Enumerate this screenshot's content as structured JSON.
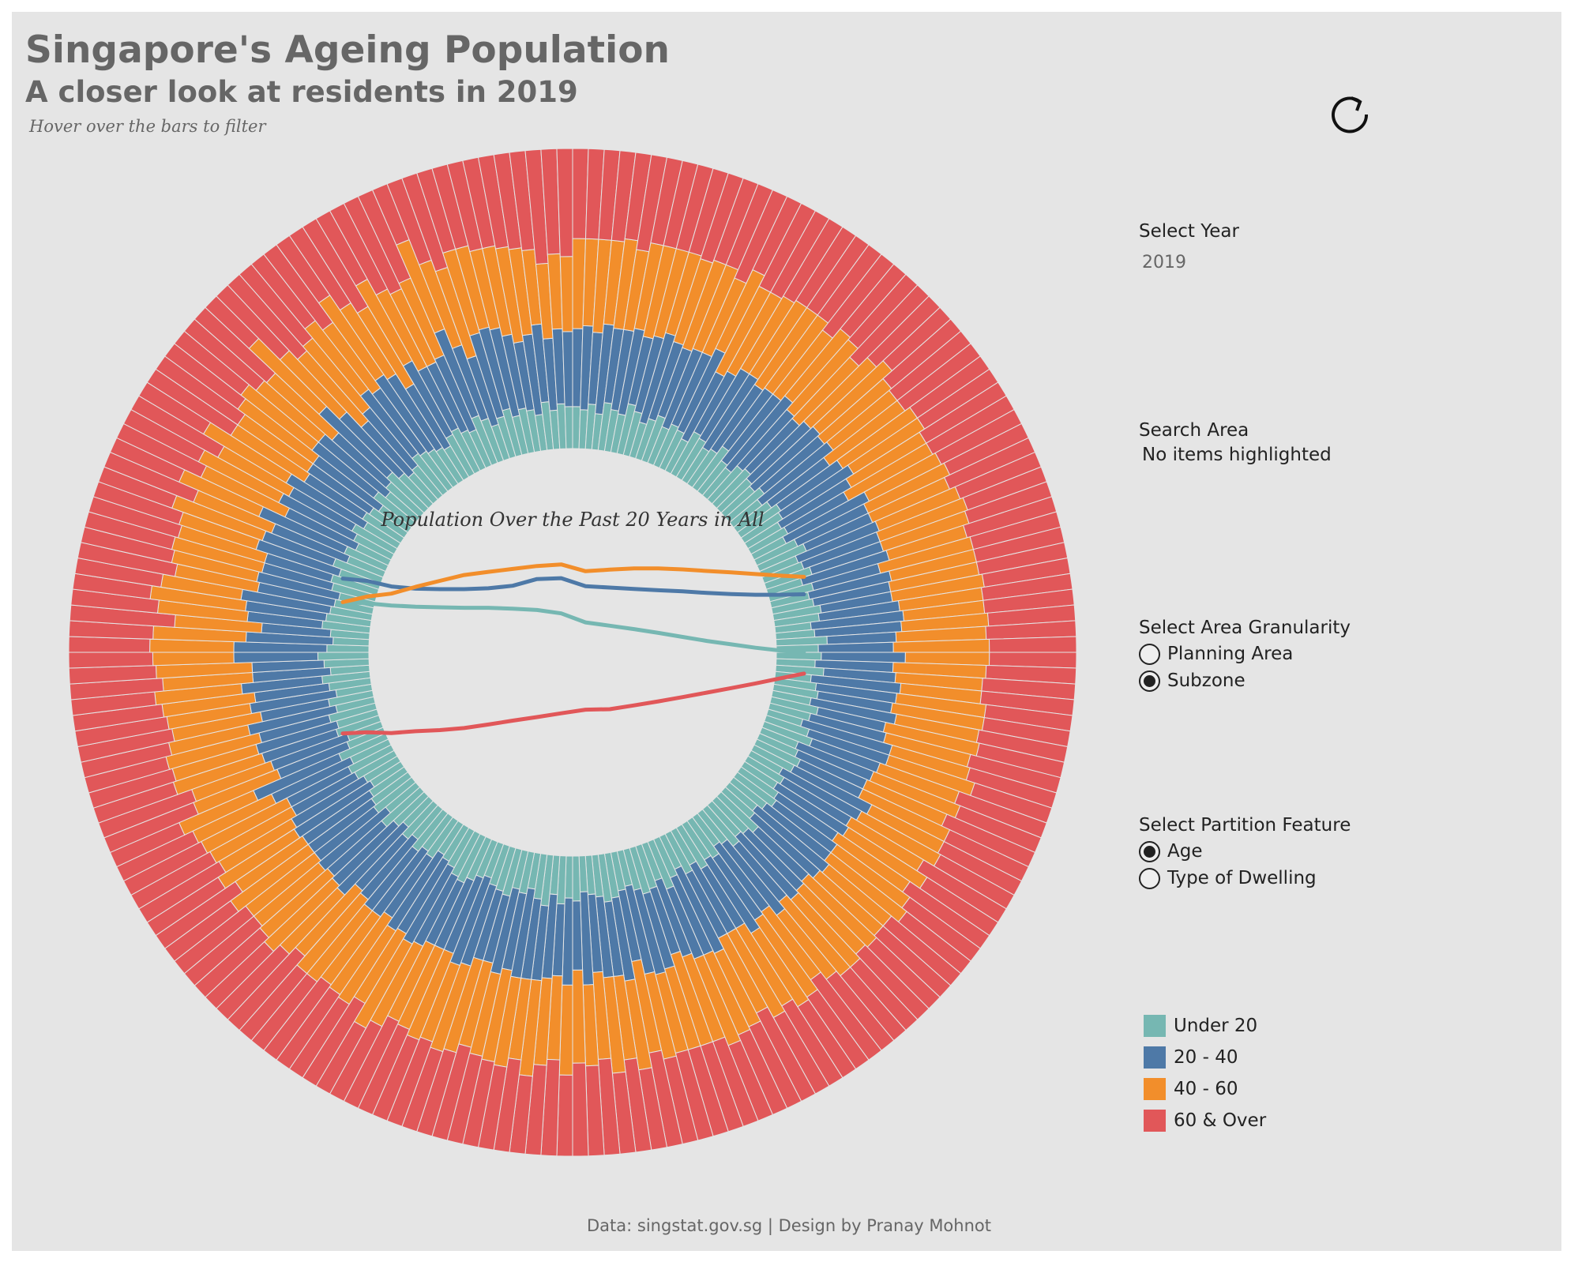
{
  "header": {
    "title": "Singapore's Ageing Population",
    "subtitle": "A closer look at residents in 2019",
    "hint": "Hover over the bars to filter"
  },
  "reset_icon": "reset-arrow-icon",
  "controls": {
    "year_label": "Select Year",
    "year_value": "2019",
    "search_label": "Search Area",
    "search_value": "No items highlighted",
    "granularity_label": "Select Area Granularity",
    "granularity_options": [
      "Planning Area",
      "Subzone"
    ],
    "granularity_selected": "Subzone",
    "partition_label": "Select Partition Feature",
    "partition_options": [
      "Age",
      "Type of Dwelling"
    ],
    "partition_selected": "Age"
  },
  "legend": [
    {
      "label": "Under 20",
      "color": "#76b7b2"
    },
    {
      "label": "20 - 40",
      "color": "#4e79a7"
    },
    {
      "label": "40 - 60",
      "color": "#f28e2b"
    },
    {
      "label": "60 & Over",
      "color": "#e15759"
    }
  ],
  "footer": "Data: singstat.gov.sg | Design by Pranay Mohnot",
  "chart_data": [
    {
      "type": "radial stacked bar",
      "subzone_count": 200,
      "series_names": [
        "Under 20",
        "20 - 40",
        "40 - 60",
        "60 & Over"
      ],
      "colors": [
        "#76b7b2",
        "#4e79a7",
        "#f28e2b",
        "#e15759"
      ],
      "shares_note_values": [
        {
          "name": "Under 20",
          "values": [
            0.14,
            0.13,
            0.15,
            0.12,
            0.16,
            0.14,
            0.13,
            0.17,
            0.15,
            0.12,
            0.14,
            0.16,
            0.13,
            0.15,
            0.14,
            0.12,
            0.16,
            0.15,
            0.13,
            0.14,
            0.17,
            0.13,
            0.12,
            0.15,
            0.16,
            0.14,
            0.13,
            0.15,
            0.12,
            0.14,
            0.16,
            0.15,
            0.13,
            0.14,
            0.12,
            0.15,
            0.17,
            0.13,
            0.14,
            0.16,
            0.12,
            0.15,
            0.13,
            0.14,
            0.16,
            0.15,
            0.12,
            0.13,
            0.17,
            0.14,
            0.15,
            0.13,
            0.16,
            0.12,
            0.14,
            0.15,
            0.13,
            0.16,
            0.14,
            0.12,
            0.15,
            0.17,
            0.13,
            0.14,
            0.16,
            0.15,
            0.12,
            0.14,
            0.13,
            0.15,
            0.16,
            0.14,
            0.12,
            0.13,
            0.17,
            0.15,
            0.14,
            0.16,
            0.13,
            0.12,
            0.15,
            0.14,
            0.16,
            0.13,
            0.15,
            0.12,
            0.14,
            0.17,
            0.13,
            0.15,
            0.16,
            0.14,
            0.12,
            0.13,
            0.15,
            0.16,
            0.14,
            0.13,
            0.12,
            0.15,
            0.14,
            0.16,
            0.13,
            0.17,
            0.15,
            0.12,
            0.14,
            0.13,
            0.16,
            0.15,
            0.14,
            0.12,
            0.13,
            0.15,
            0.17,
            0.16,
            0.14,
            0.13,
            0.12,
            0.15,
            0.14,
            0.16,
            0.13,
            0.15,
            0.12,
            0.14,
            0.17,
            0.13,
            0.16,
            0.15,
            0.14,
            0.12,
            0.13,
            0.15,
            0.16,
            0.14,
            0.17,
            0.13,
            0.12,
            0.15,
            0.14,
            0.16,
            0.13,
            0.15,
            0.12,
            0.14,
            0.16,
            0.13,
            0.15,
            0.17,
            0.14,
            0.12,
            0.13,
            0.16,
            0.15,
            0.14,
            0.13,
            0.12,
            0.15,
            0.16,
            0.14,
            0.17,
            0.13,
            0.15,
            0.12,
            0.14,
            0.16,
            0.13,
            0.15,
            0.14,
            0.12,
            0.16,
            0.13,
            0.15,
            0.17,
            0.14,
            0.12,
            0.13,
            0.16,
            0.15,
            0.14,
            0.13,
            0.12,
            0.15,
            0.16,
            0.14,
            0.13,
            0.17,
            0.15,
            0.12,
            0.14,
            0.16,
            0.13,
            0.15,
            0.14,
            0.12,
            0.16,
            0.13,
            0.15,
            0.14
          ]
        },
        {
          "name": "20 - 40",
          "values": [
            0.26,
            0.28,
            0.24,
            0.3,
            0.25,
            0.27,
            0.29,
            0.23,
            0.26,
            0.31,
            0.27,
            0.24,
            0.28,
            0.26,
            0.3,
            0.25,
            0.23,
            0.27,
            0.29,
            0.26,
            0.24,
            0.28,
            0.31,
            0.25,
            0.23,
            0.27,
            0.29,
            0.26,
            0.3,
            0.24,
            0.25,
            0.28,
            0.27,
            0.23,
            0.31,
            0.26,
            0.24,
            0.29,
            0.27,
            0.25,
            0.3,
            0.23,
            0.28,
            0.26,
            0.24,
            0.27,
            0.31,
            0.29,
            0.23,
            0.25,
            0.28,
            0.26,
            0.24,
            0.3,
            0.27,
            0.25,
            0.29,
            0.23,
            0.26,
            0.31,
            0.28,
            0.24,
            0.27,
            0.25,
            0.23,
            0.29,
            0.3,
            0.26,
            0.28,
            0.24,
            0.25,
            0.27,
            0.31,
            0.29,
            0.23,
            0.26,
            0.28,
            0.24,
            0.3,
            0.27,
            0.25,
            0.29,
            0.23,
            0.26,
            0.24,
            0.31,
            0.28,
            0.25,
            0.27,
            0.23,
            0.26,
            0.29,
            0.3,
            0.24,
            0.28,
            0.25,
            0.27,
            0.26,
            0.31,
            0.23,
            0.29,
            0.24,
            0.28,
            0.25,
            0.27,
            0.3,
            0.26,
            0.29,
            0.23,
            0.24,
            0.28,
            0.31,
            0.27,
            0.25,
            0.23,
            0.26,
            0.29,
            0.28,
            0.3,
            0.24,
            0.27,
            0.25,
            0.26,
            0.23,
            0.31,
            0.28,
            0.24,
            0.29,
            0.25,
            0.26,
            0.27,
            0.3,
            0.28,
            0.24,
            0.23,
            0.29,
            0.31,
            0.25,
            0.27,
            0.26,
            0.28,
            0.24,
            0.3,
            0.23,
            0.29,
            0.25,
            0.27,
            0.26,
            0.24,
            0.28,
            0.31,
            0.29,
            0.23,
            0.25,
            0.27,
            0.3,
            0.26,
            0.28,
            0.24,
            0.23,
            0.29,
            0.25,
            0.27,
            0.31,
            0.26,
            0.28,
            0.24,
            0.3,
            0.23,
            0.25,
            0.27,
            0.26,
            0.29,
            0.24,
            0.31,
            0.28,
            0.23,
            0.25,
            0.27,
            0.26,
            0.3,
            0.29,
            0.24,
            0.28,
            0.23,
            0.25,
            0.27,
            0.31,
            0.26,
            0.24,
            0.29,
            0.28,
            0.3,
            0.25,
            0.23,
            0.27,
            0.26,
            0.24
          ]
        },
        {
          "name": "40 - 60",
          "values": [
            0.3,
            0.29,
            0.31,
            0.28,
            0.3,
            0.27,
            0.29,
            0.31,
            0.3,
            0.28,
            0.29,
            0.31,
            0.3,
            0.27,
            0.29,
            0.32,
            0.3,
            0.28,
            0.29,
            0.31,
            0.3,
            0.27,
            0.29,
            0.31,
            0.28,
            0.3,
            0.32,
            0.29,
            0.27,
            0.31,
            0.3,
            0.28,
            0.29,
            0.32,
            0.27,
            0.3,
            0.28,
            0.29,
            0.31,
            0.3,
            0.27,
            0.32,
            0.29,
            0.3,
            0.31,
            0.28,
            0.27,
            0.29,
            0.3,
            0.32,
            0.28,
            0.31,
            0.29,
            0.27,
            0.3,
            0.31,
            0.28,
            0.32,
            0.29,
            0.27,
            0.3,
            0.28,
            0.31,
            0.29,
            0.32,
            0.27,
            0.3,
            0.28,
            0.31,
            0.29,
            0.3,
            0.32,
            0.27,
            0.28,
            0.31,
            0.29,
            0.3,
            0.32,
            0.27,
            0.28,
            0.31,
            0.29,
            0.3,
            0.32,
            0.28,
            0.27,
            0.29,
            0.31,
            0.3,
            0.32,
            0.28,
            0.27,
            0.29,
            0.31,
            0.3,
            0.28,
            0.32,
            0.29,
            0.27,
            0.31,
            0.3,
            0.28,
            0.29,
            0.32,
            0.27,
            0.3,
            0.31,
            0.28,
            0.29,
            0.32,
            0.3,
            0.27,
            0.31,
            0.29,
            0.28,
            0.3,
            0.32,
            0.27,
            0.29,
            0.31,
            0.28,
            0.3,
            0.32,
            0.29,
            0.27,
            0.31,
            0.3,
            0.28,
            0.29,
            0.32,
            0.27,
            0.3,
            0.28,
            0.31,
            0.32,
            0.29,
            0.27,
            0.3,
            0.28,
            0.31,
            0.29,
            0.32,
            0.27,
            0.3,
            0.28,
            0.31,
            0.29,
            0.3,
            0.32,
            0.27,
            0.28,
            0.31,
            0.29,
            0.3,
            0.32,
            0.27,
            0.28,
            0.29,
            0.31,
            0.3,
            0.27,
            0.32,
            0.28,
            0.29,
            0.31,
            0.3,
            0.27,
            0.32,
            0.29,
            0.28,
            0.31,
            0.3,
            0.27,
            0.29,
            0.32,
            0.28,
            0.31,
            0.3,
            0.29,
            0.27,
            0.32,
            0.28,
            0.3,
            0.31,
            0.29,
            0.27,
            0.28,
            0.32,
            0.3,
            0.31,
            0.29,
            0.28,
            0.27,
            0.3,
            0.32,
            0.29
          ]
        }
      ]
    },
    {
      "type": "line",
      "title": "Population Over the Past 20 Years in All",
      "x": [
        2000,
        2001,
        2002,
        2003,
        2004,
        2005,
        2006,
        2007,
        2008,
        2009,
        2010,
        2011,
        2012,
        2013,
        2014,
        2015,
        2016,
        2017,
        2018,
        2019
      ],
      "series": [
        {
          "name": "Under 20",
          "color": "#76b7b2",
          "values": [
            995,
            990,
            980,
            975,
            972,
            970,
            970,
            966,
            960,
            945,
            905,
            890,
            875,
            858,
            840,
            822,
            807,
            792,
            780,
            775
          ]
        },
        {
          "name": "20 - 40",
          "color": "#4e79a7",
          "values": [
            1100,
            1090,
            1065,
            1055,
            1053,
            1053,
            1057,
            1068,
            1098,
            1102,
            1066,
            1060,
            1054,
            1048,
            1043,
            1036,
            1031,
            1028,
            1028,
            1030
          ]
        },
        {
          "name": "40 - 60",
          "color": "#f28e2b",
          "values": [
            995,
            1020,
            1033,
            1063,
            1090,
            1116,
            1130,
            1143,
            1156,
            1163,
            1133,
            1140,
            1145,
            1145,
            1141,
            1134,
            1128,
            1120,
            1113,
            1108
          ]
        },
        {
          "name": "60 & Over",
          "color": "#e15759",
          "values": [
            410,
            415,
            412,
            420,
            425,
            434,
            450,
            467,
            483,
            500,
            516,
            518,
            535,
            553,
            572,
            592,
            612,
            633,
            655,
            677
          ]
        }
      ],
      "ylim": [
        300,
        1250
      ]
    }
  ]
}
